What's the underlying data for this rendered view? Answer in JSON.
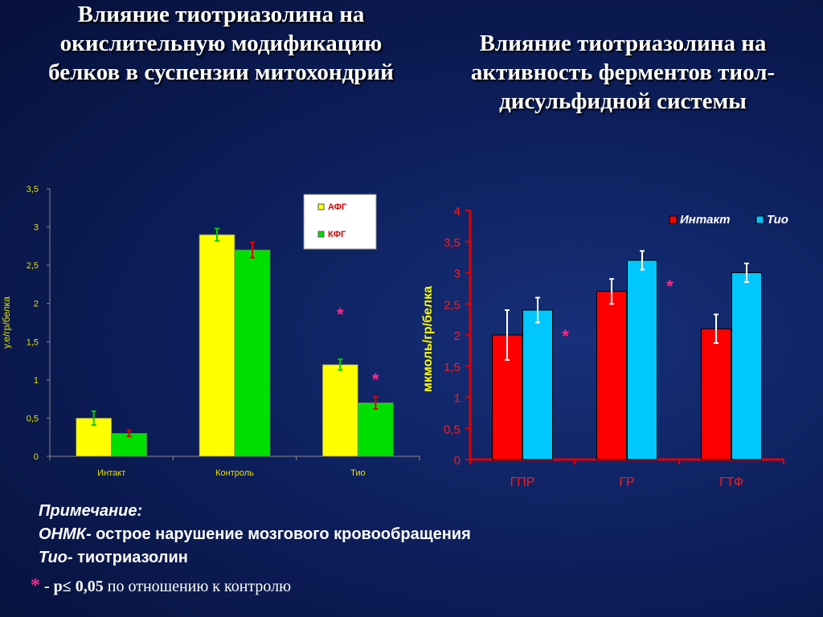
{
  "titles": {
    "left": "Влияние тиотриазолина на окислительную модификацию белков в суспензии митохондрий",
    "right": "Влияние тиотриазолина на активность ферментов тиол-дисульфидной системы"
  },
  "colors": {
    "afg": "#ffff00",
    "kfg": "#00e000",
    "intact": "#ff0000",
    "tio": "#00c8ff",
    "star": "#ff2a8a",
    "err_green": "#00cc00",
    "err_red": "#dd0000",
    "err_white": "#ffffff"
  },
  "chart_data": [
    {
      "type": "bar",
      "categories": [
        "Интакт",
        "Контроль",
        "Тио"
      ],
      "series": [
        {
          "name": "АФГ",
          "values": [
            0.5,
            2.9,
            1.2
          ],
          "errors": [
            0.09,
            0.08,
            0.07
          ]
        },
        {
          "name": "КФГ",
          "values": [
            0.3,
            2.7,
            0.7
          ],
          "errors": [
            0.04,
            0.1,
            0.08
          ]
        }
      ],
      "ylabel": "у.е/гр/белка",
      "ylim": [
        0,
        3.5
      ],
      "yticks": [
        "0",
        "0,5",
        "1",
        "1,5",
        "2",
        "2,5",
        "3",
        "3,5"
      ],
      "significance": [
        {
          "category": "Тио",
          "series": "АФГ",
          "mark": "*"
        },
        {
          "category": "Тио",
          "series": "КФГ",
          "mark": "*"
        }
      ],
      "legend": "top-right"
    },
    {
      "type": "bar",
      "categories": [
        "ГПР",
        "ГР",
        "ГТФ"
      ],
      "series": [
        {
          "name": "Интакт",
          "values": [
            2.0,
            2.7,
            2.1
          ],
          "errors": [
            0.4,
            0.2,
            0.23
          ]
        },
        {
          "name": "Тио",
          "values": [
            2.4,
            3.2,
            3.0
          ],
          "errors": [
            0.2,
            0.15,
            0.15
          ]
        }
      ],
      "ylabel": "мкмоль/гр/белка",
      "ylim": [
        0,
        4
      ],
      "yticks": [
        "0",
        "0,5",
        "1",
        "1,5",
        "2",
        "2,5",
        "3",
        "3,5",
        "4"
      ],
      "significance": [
        {
          "category": "ГПР",
          "series": "Тио",
          "mark": "*"
        },
        {
          "category": "ГР",
          "series": "Тио",
          "mark": "*"
        }
      ],
      "legend": "top-right"
    }
  ],
  "notes": {
    "header": "Примечание:",
    "onmk_abbr": "ОНМК-",
    "onmk_text": " острое нарушение мозгового кровообращения",
    "tio_abbr": "Тио-",
    "tio_text": " тиотриазолин",
    "star": "*",
    "dash": " - ",
    "pvalue": "p≤ 0,05",
    "pvalue_text": " по отношению к контролю"
  }
}
